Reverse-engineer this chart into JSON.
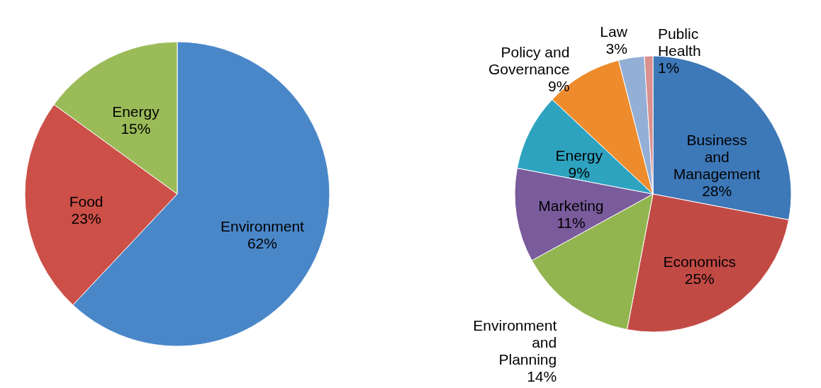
{
  "chart_data": [
    {
      "type": "pie",
      "categories": [
        "Environment",
        "Food",
        "Energy"
      ],
      "values": [
        62,
        23,
        15
      ],
      "colors": [
        "#4a87c9",
        "#cc5048",
        "#9bbb59"
      ],
      "value_labels": [
        "62%",
        "23%",
        "15%"
      ]
    },
    {
      "type": "pie",
      "categories": [
        "Business and Management",
        "Economics",
        "Environment and Planning",
        "Marketing",
        "Energy",
        "Policy and Governance",
        "Law",
        "Public Health"
      ],
      "values": [
        28,
        25,
        14,
        11,
        9,
        9,
        3,
        1
      ],
      "colors": [
        "#3d78b8",
        "#c24a45",
        "#92b54f",
        "#7a5b9c",
        "#2ea3c0",
        "#ee8c2d",
        "#93afd6",
        "#d9908e"
      ],
      "value_labels": [
        "28%",
        "25%",
        "14%",
        "11%",
        "9%",
        "9%",
        "3%",
        "1%"
      ]
    }
  ]
}
